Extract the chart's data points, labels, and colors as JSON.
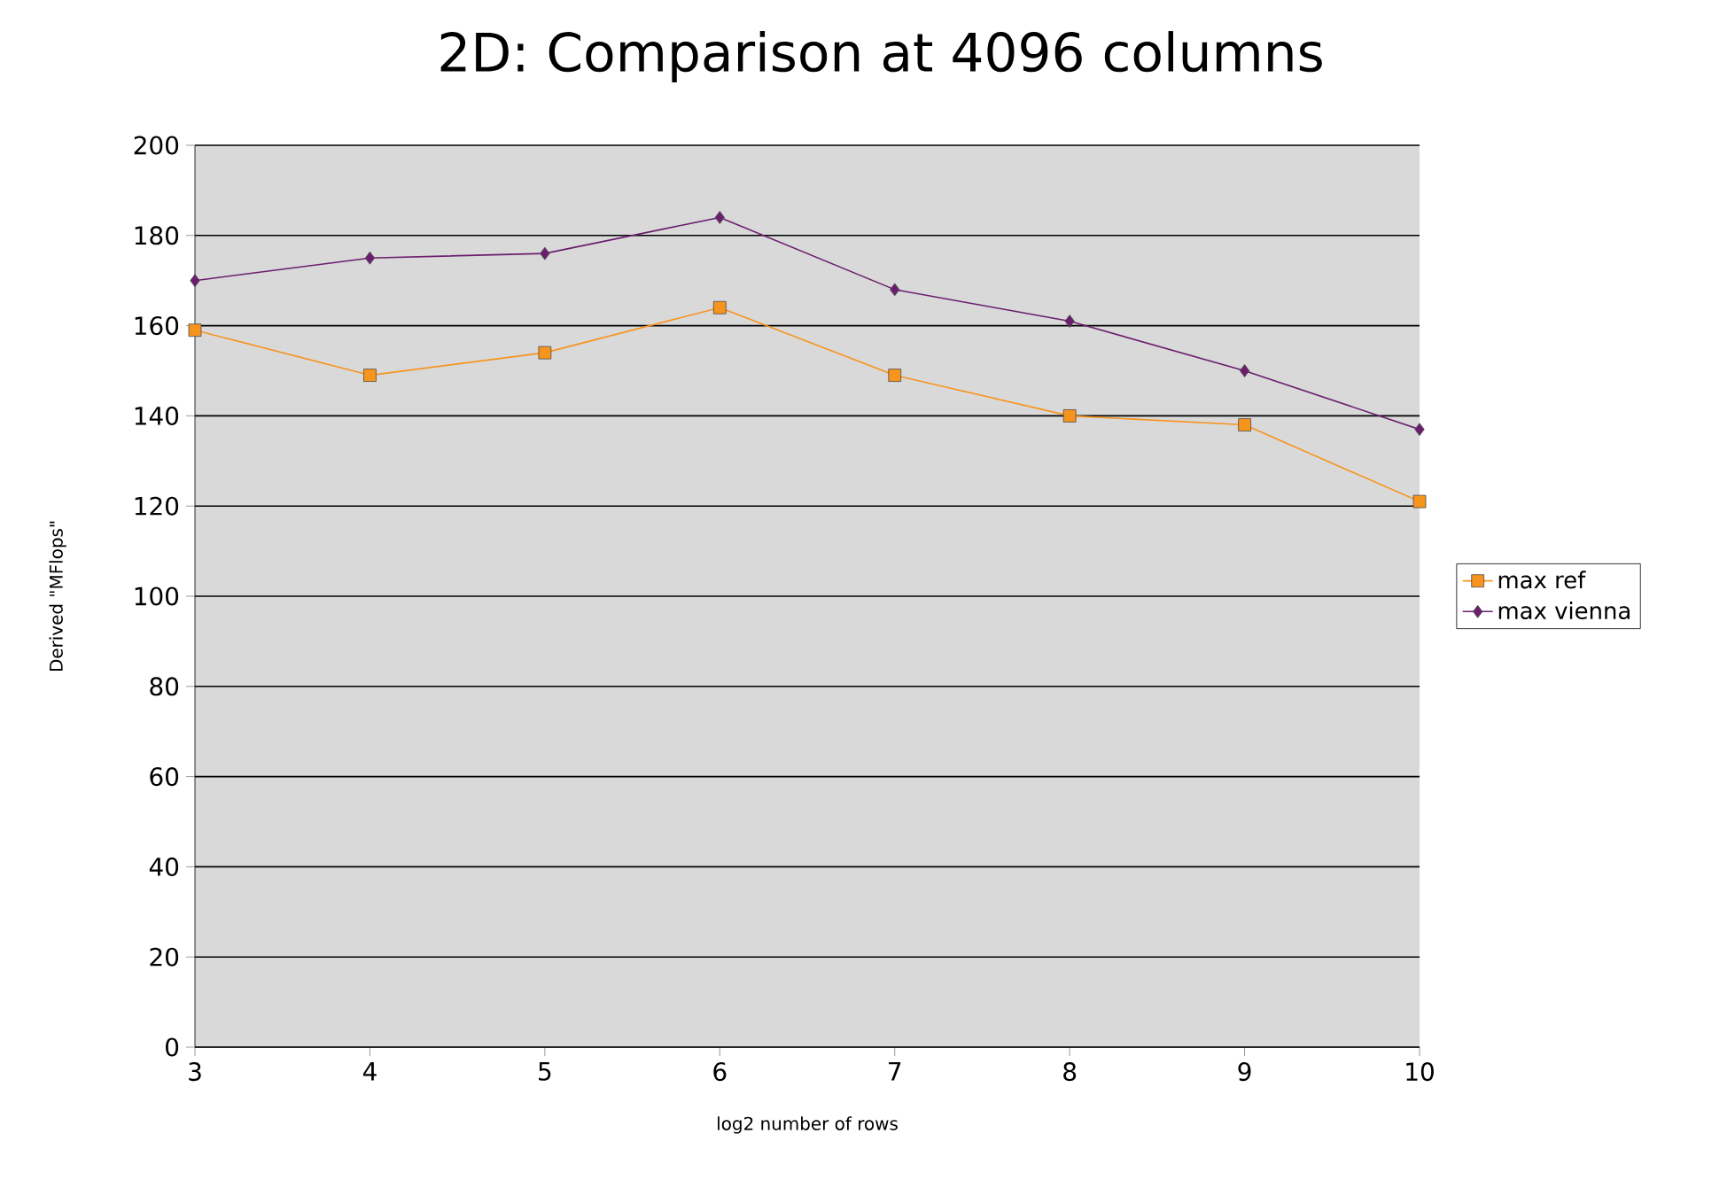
{
  "chart_data": {
    "type": "line",
    "title": "2D: Comparison at 4096 columns",
    "xlabel": "log2 number of rows",
    "ylabel": "Derived \"MFlops\"",
    "x": [
      3,
      4,
      5,
      6,
      7,
      8,
      9,
      10
    ],
    "series": [
      {
        "name": "max ref",
        "color": "#f7941d",
        "marker": "square",
        "values": [
          159,
          149,
          154,
          164,
          149,
          140,
          138,
          121
        ]
      },
      {
        "name": "max vienna",
        "color": "#6b1e6e",
        "marker": "diamond",
        "values": [
          170,
          175,
          176,
          184,
          168,
          161,
          150,
          137
        ]
      }
    ],
    "xlim": [
      3,
      10
    ],
    "xticks": [
      3,
      4,
      5,
      6,
      7,
      8,
      9,
      10
    ],
    "ylim": [
      0,
      200
    ],
    "yticks": [
      0,
      20,
      40,
      60,
      80,
      100,
      120,
      140,
      160,
      180,
      200
    ],
    "grid": "y",
    "legend": "right",
    "line_style": "solid"
  }
}
